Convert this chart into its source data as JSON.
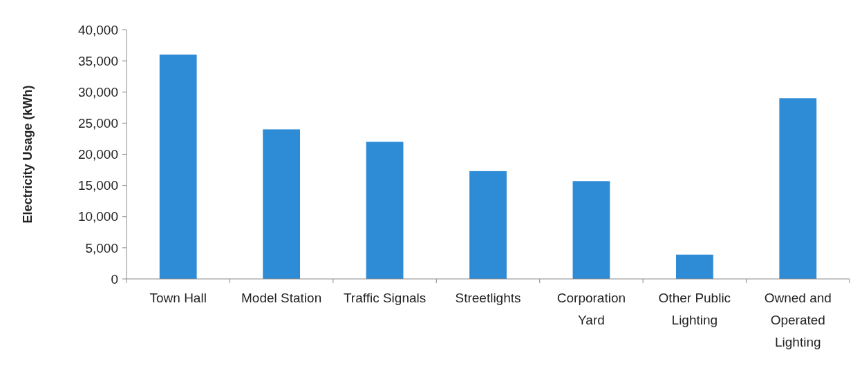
{
  "chart_data": {
    "type": "bar",
    "ylabel": "Electricity Usage (kWh)",
    "categories": [
      "Town Hall",
      "Model Station",
      "Traffic Signals",
      "Streetlights",
      "Corporation Yard",
      "Other Public Lighting",
      "Owned and Operated Lighting"
    ],
    "values": [
      36000,
      24000,
      22000,
      17300,
      15700,
      3900,
      29000
    ],
    "color": "#2e8bd6",
    "ylim": [
      0,
      40000
    ],
    "yticks": [
      {
        "value": 0,
        "label": "0"
      },
      {
        "value": 5000,
        "label": "5,000"
      },
      {
        "value": 10000,
        "label": "10,000"
      },
      {
        "value": 15000,
        "label": "15,000"
      },
      {
        "value": 20000,
        "label": "20,000"
      },
      {
        "value": 25000,
        "label": "25,000"
      },
      {
        "value": 30000,
        "label": "30,000"
      },
      {
        "value": 35000,
        "label": "35,000"
      },
      {
        "value": 40000,
        "label": "40,000"
      }
    ],
    "grid": false
  }
}
